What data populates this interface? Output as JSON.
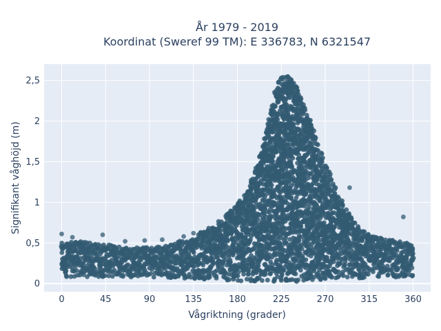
{
  "chart_data": {
    "type": "scatter",
    "title_line1": "År 1979 - 2019",
    "title_line2": "Koordinat (Sweref 99 TM): E 336783, N 6321547",
    "xlabel": "Vågriktning (grader)",
    "ylabel": "Signifikant våghöjd (m)",
    "xlim": [
      -18,
      378
    ],
    "ylim": [
      -0.1,
      2.7
    ],
    "xticks": [
      0,
      45,
      90,
      135,
      180,
      225,
      270,
      315,
      360
    ],
    "xtick_labels": [
      "0",
      "45",
      "90",
      "135",
      "180",
      "225",
      "270",
      "315",
      "360"
    ],
    "yticks": [
      0,
      0.5,
      1,
      1.5,
      2,
      2.5
    ],
    "ytick_labels": [
      "0",
      "0,5",
      "1",
      "1,5",
      "2",
      "2,5"
    ],
    "grid": true,
    "marker_color": "#335b72",
    "envelope": {
      "x": [
        0,
        20,
        45,
        60,
        90,
        110,
        135,
        150,
        165,
        180,
        190,
        200,
        210,
        218,
        225,
        232,
        240,
        248,
        255,
        262,
        270,
        280,
        290,
        300,
        315,
        330,
        345,
        360
      ],
      "upper": [
        0.5,
        0.52,
        0.48,
        0.46,
        0.45,
        0.48,
        0.58,
        0.68,
        0.8,
        0.98,
        1.15,
        1.45,
        1.9,
        2.35,
        2.58,
        2.55,
        2.45,
        2.2,
        2.0,
        1.75,
        1.5,
        1.2,
        0.95,
        0.75,
        0.6,
        0.55,
        0.52,
        0.5
      ],
      "lower": [
        0.08,
        0.08,
        0.08,
        0.08,
        0.08,
        0.07,
        0.06,
        0.05,
        0.04,
        0.03,
        0.02,
        0.02,
        0.02,
        0.02,
        0.02,
        0.02,
        0.02,
        0.02,
        0.02,
        0.02,
        0.03,
        0.04,
        0.05,
        0.06,
        0.07,
        0.08,
        0.08,
        0.08
      ]
    },
    "outliers": [
      {
        "x": 0,
        "y": 0.61
      },
      {
        "x": 11,
        "y": 0.57
      },
      {
        "x": 42,
        "y": 0.6
      },
      {
        "x": 65,
        "y": 0.52
      },
      {
        "x": 85,
        "y": 0.53
      },
      {
        "x": 103,
        "y": 0.54
      },
      {
        "x": 125,
        "y": 0.58
      },
      {
        "x": 135,
        "y": 0.62
      },
      {
        "x": 295,
        "y": 1.18
      },
      {
        "x": 350,
        "y": 0.82
      }
    ]
  }
}
